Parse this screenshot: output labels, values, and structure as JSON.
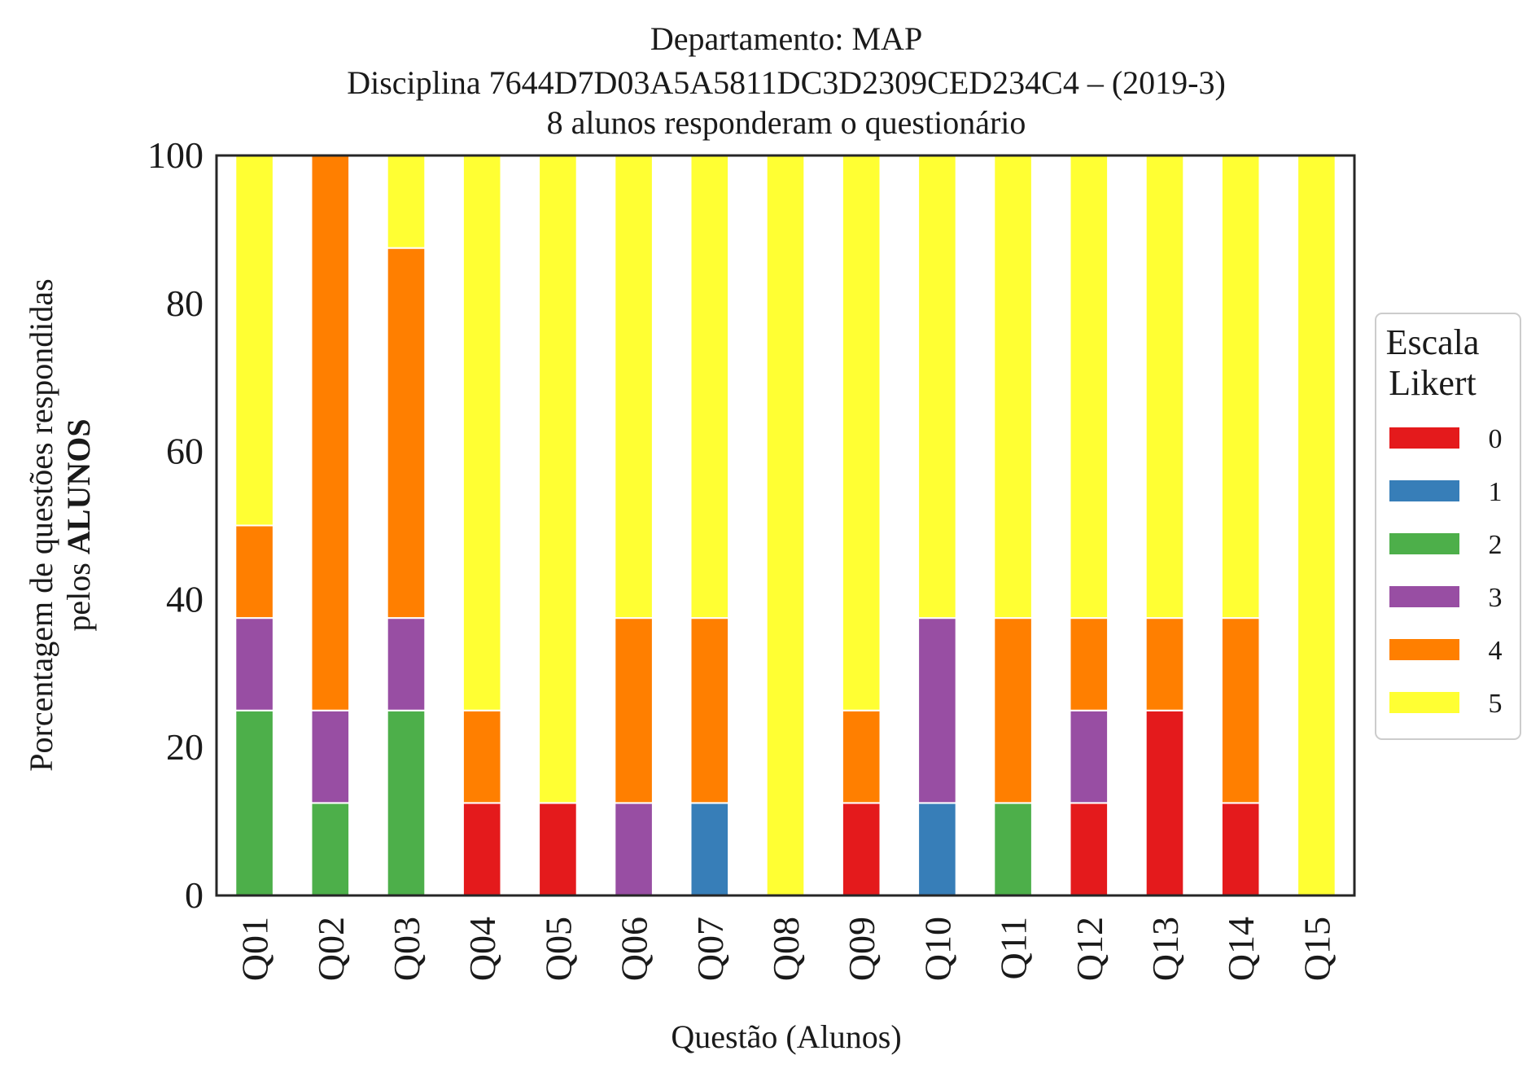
{
  "chart_data": {
    "type": "bar",
    "stacked": true,
    "title_lines": [
      "Departamento: MAP",
      "Disciplina 7644D7D03A5A5811DC3D2309CED234C4 – (2019-3)",
      "8 alunos responderam o questionário"
    ],
    "xlabel": "Questão (Alunos)",
    "ylabel_line1": "Porcentagem de questões respondidas",
    "ylabel_line2_prefix": "pelos ",
    "ylabel_line2_bold": "ALUNOS",
    "ylim": [
      0,
      100
    ],
    "yticks": [
      "0",
      "20",
      "40",
      "60",
      "80",
      "100"
    ],
    "categories": [
      "Q01",
      "Q02",
      "Q03",
      "Q04",
      "Q05",
      "Q06",
      "Q07",
      "Q08",
      "Q09",
      "Q10",
      "Q11",
      "Q12",
      "Q13",
      "Q14",
      "Q15"
    ],
    "series": [
      {
        "name": "0",
        "color": "#e41a1c",
        "values": [
          0,
          0,
          0,
          12.5,
          12.5,
          0,
          0,
          0,
          12.5,
          0,
          0,
          12.5,
          25,
          12.5,
          0
        ]
      },
      {
        "name": "1",
        "color": "#377eb8",
        "values": [
          0,
          0,
          0,
          0,
          0,
          0,
          12.5,
          0,
          0,
          12.5,
          0,
          0,
          0,
          0,
          0
        ]
      },
      {
        "name": "2",
        "color": "#4daf4a",
        "values": [
          25,
          12.5,
          25,
          0,
          0,
          0,
          0,
          0,
          0,
          0,
          12.5,
          0,
          0,
          0,
          0
        ]
      },
      {
        "name": "3",
        "color": "#984ea3",
        "values": [
          12.5,
          12.5,
          12.5,
          0,
          0,
          12.5,
          0,
          0,
          0,
          25,
          0,
          12.5,
          0,
          0,
          0
        ]
      },
      {
        "name": "4",
        "color": "#ff7f00",
        "values": [
          12.5,
          75,
          50,
          12.5,
          0,
          25,
          25,
          0,
          12.5,
          0,
          25,
          12.5,
          12.5,
          25,
          0
        ]
      },
      {
        "name": "5",
        "color": "#ffff33",
        "values": [
          50,
          0,
          12.5,
          75,
          87.5,
          62.5,
          62.5,
          100,
          75,
          62.5,
          62.5,
          62.5,
          62.5,
          62.5,
          100
        ]
      }
    ],
    "legend": {
      "title_lines": [
        "Escala",
        "Likert"
      ],
      "placement": "right-center"
    }
  }
}
